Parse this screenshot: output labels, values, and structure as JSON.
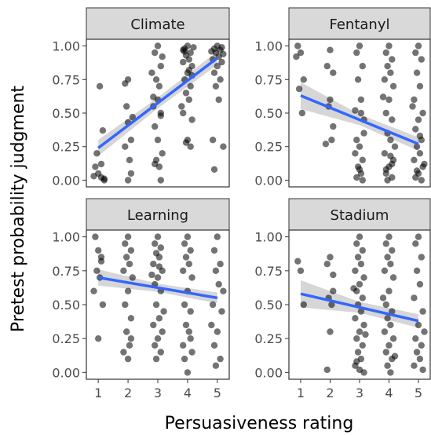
{
  "chart_data": {
    "type": "scatter",
    "xlabel": "Persuasiveness rating",
    "ylabel": "Pretest probability judgment",
    "xlim": [
      0.6,
      5.4
    ],
    "ylim": [
      -0.05,
      1.05
    ],
    "x_ticks": [
      1,
      2,
      3,
      4,
      5
    ],
    "y_ticks": [
      0.0,
      0.25,
      0.5,
      0.75,
      1.0
    ],
    "y_tick_labels": [
      "0.00",
      "0.25",
      "0.50",
      "0.75",
      "1.00"
    ],
    "colors": {
      "points": "#000000",
      "trend_line": "#3366ff",
      "confidence_band": "#999999",
      "strip_fill": "#d9d9d9",
      "panel_border": "#333333"
    },
    "panels": [
      {
        "name": "Climate",
        "trend": {
          "x": [
            1,
            5
          ],
          "y": [
            0.24,
            0.91
          ],
          "ci_halfwidth": [
            0.06,
            0.04,
            0.05
          ]
        },
        "points": [
          [
            1.0,
            0.05
          ],
          [
            1.1,
            0.02
          ],
          [
            0.9,
            0.1
          ],
          [
            1.2,
            0.0
          ],
          [
            1.05,
            0.7
          ],
          [
            1.15,
            0.37
          ],
          [
            0.95,
            0.2
          ],
          [
            1.2,
            0.01
          ],
          [
            0.85,
            0.03
          ],
          [
            1.1,
            0.12
          ],
          [
            2.0,
            0.75
          ],
          [
            1.9,
            0.25
          ],
          [
            2.1,
            0.3
          ],
          [
            2.0,
            0.43
          ],
          [
            1.95,
            0.55
          ],
          [
            2.05,
            0.15
          ],
          [
            2.1,
            0.05
          ],
          [
            1.9,
            0.72
          ],
          [
            2.15,
            0.47
          ],
          [
            2.0,
            0.0
          ],
          [
            3.0,
            1.0
          ],
          [
            2.9,
            0.95
          ],
          [
            3.1,
            0.85
          ],
          [
            2.95,
            0.75
          ],
          [
            3.05,
            0.7
          ],
          [
            2.85,
            0.62
          ],
          [
            3.1,
            0.5
          ],
          [
            2.9,
            0.4
          ],
          [
            3.0,
            0.3
          ],
          [
            2.95,
            0.15
          ],
          [
            3.05,
            0.1
          ],
          [
            3.1,
            0.0
          ],
          [
            2.85,
            0.55
          ],
          [
            3.15,
            0.92
          ],
          [
            2.8,
            0.8
          ],
          [
            3.0,
            0.6
          ],
          [
            3.15,
            0.2
          ],
          [
            2.9,
            0.12
          ],
          [
            3.1,
            0.48
          ],
          [
            4.0,
            1.0
          ],
          [
            3.9,
            0.98
          ],
          [
            4.1,
            0.95
          ],
          [
            3.95,
            0.93
          ],
          [
            4.05,
            0.9
          ],
          [
            3.85,
            0.88
          ],
          [
            4.15,
            0.85
          ],
          [
            4.0,
            0.8
          ],
          [
            3.9,
            0.75
          ],
          [
            4.1,
            0.7
          ],
          [
            3.95,
            0.65
          ],
          [
            4.05,
            0.6
          ],
          [
            3.85,
            0.5
          ],
          [
            4.15,
            0.45
          ],
          [
            4.0,
            0.3
          ],
          [
            3.95,
            0.28
          ],
          [
            4.1,
            0.25
          ],
          [
            3.8,
            0.55
          ],
          [
            4.2,
            0.99
          ],
          [
            3.9,
            0.96
          ],
          [
            4.05,
            0.82
          ],
          [
            3.85,
            0.97
          ],
          [
            4.15,
            0.78
          ],
          [
            5.0,
            1.0
          ],
          [
            4.9,
            0.98
          ],
          [
            5.1,
            0.97
          ],
          [
            4.95,
            0.95
          ],
          [
            5.05,
            0.92
          ],
          [
            4.85,
            0.9
          ],
          [
            5.15,
            0.88
          ],
          [
            5.0,
            0.85
          ],
          [
            4.9,
            0.8
          ],
          [
            5.1,
            0.75
          ],
          [
            4.95,
            0.7
          ],
          [
            5.05,
            0.6
          ],
          [
            5.2,
            0.25
          ],
          [
            4.9,
            0.08
          ],
          [
            5.15,
            0.99
          ],
          [
            4.8,
            0.96
          ],
          [
            5.2,
            0.94
          ],
          [
            4.85,
            0.3
          ]
        ]
      },
      {
        "name": "Fentanyl",
        "trend": {
          "x": [
            1,
            5
          ],
          "y": [
            0.63,
            0.27
          ],
          "ci_halfwidth": [
            0.1,
            0.04,
            0.05
          ]
        },
        "points": [
          [
            0.9,
            1.0
          ],
          [
            1.0,
            0.95
          ],
          [
            1.1,
            0.75
          ],
          [
            0.95,
            0.68
          ],
          [
            1.05,
            0.5
          ],
          [
            0.85,
            0.92
          ],
          [
            2.0,
            0.97
          ],
          [
            1.9,
            0.85
          ],
          [
            2.1,
            0.8
          ],
          [
            2.0,
            0.6
          ],
          [
            1.95,
            0.55
          ],
          [
            2.05,
            0.3
          ],
          [
            1.85,
            0.27
          ],
          [
            2.1,
            0.4
          ],
          [
            3.0,
            1.0
          ],
          [
            2.9,
            0.95
          ],
          [
            3.1,
            0.85
          ],
          [
            2.95,
            0.75
          ],
          [
            3.05,
            0.6
          ],
          [
            2.85,
            0.52
          ],
          [
            3.15,
            0.45
          ],
          [
            2.9,
            0.3
          ],
          [
            3.0,
            0.25
          ],
          [
            3.1,
            0.15
          ],
          [
            2.95,
            0.1
          ],
          [
            3.05,
            0.05
          ],
          [
            2.9,
            0.02
          ],
          [
            3.1,
            0.0
          ],
          [
            3.15,
            0.35
          ],
          [
            2.85,
            0.2
          ],
          [
            3.0,
            0.08
          ],
          [
            3.05,
            0.5
          ],
          [
            4.0,
            1.0
          ],
          [
            3.9,
            0.95
          ],
          [
            4.1,
            0.9
          ],
          [
            3.95,
            0.85
          ],
          [
            4.05,
            0.8
          ],
          [
            3.85,
            0.75
          ],
          [
            4.15,
            0.7
          ],
          [
            4.0,
            0.6
          ],
          [
            3.9,
            0.5
          ],
          [
            4.1,
            0.45
          ],
          [
            3.95,
            0.35
          ],
          [
            4.05,
            0.3
          ],
          [
            3.85,
            0.2
          ],
          [
            4.15,
            0.15
          ],
          [
            4.0,
            0.1
          ],
          [
            3.9,
            0.05
          ],
          [
            4.1,
            0.02
          ],
          [
            3.95,
            0.0
          ],
          [
            4.05,
            0.18
          ],
          [
            3.8,
            0.62
          ],
          [
            4.2,
            0.25
          ],
          [
            3.9,
            0.08
          ],
          [
            4.1,
            0.12
          ],
          [
            5.0,
            1.0
          ],
          [
            4.9,
            0.95
          ],
          [
            5.1,
            0.9
          ],
          [
            4.95,
            0.8
          ],
          [
            5.05,
            0.7
          ],
          [
            4.85,
            0.6
          ],
          [
            5.15,
            0.5
          ],
          [
            5.0,
            0.45
          ],
          [
            4.9,
            0.38
          ],
          [
            5.1,
            0.3
          ],
          [
            4.95,
            0.25
          ],
          [
            5.05,
            0.2
          ],
          [
            4.85,
            0.15
          ],
          [
            5.15,
            0.1
          ],
          [
            5.0,
            0.05
          ],
          [
            4.9,
            0.02
          ],
          [
            5.1,
            0.0
          ],
          [
            4.8,
            0.55
          ],
          [
            5.2,
            0.12
          ],
          [
            4.95,
            0.07
          ],
          [
            5.05,
            0.33
          ]
        ]
      },
      {
        "name": "Learning",
        "trend": {
          "x": [
            1,
            5
          ],
          "y": [
            0.7,
            0.55
          ],
          "ci_halfwidth": [
            0.06,
            0.03,
            0.04
          ]
        },
        "points": [
          [
            0.9,
            1.0
          ],
          [
            1.0,
            0.9
          ],
          [
            1.1,
            0.82
          ],
          [
            0.95,
            0.75
          ],
          [
            1.05,
            0.7
          ],
          [
            0.85,
            0.6
          ],
          [
            1.15,
            0.5
          ],
          [
            1.0,
            0.25
          ],
          [
            1.1,
            0.85
          ],
          [
            2.0,
            1.0
          ],
          [
            1.9,
            0.95
          ],
          [
            2.1,
            0.9
          ],
          [
            1.95,
            0.85
          ],
          [
            2.05,
            0.8
          ],
          [
            1.85,
            0.75
          ],
          [
            2.15,
            0.7
          ],
          [
            2.0,
            0.6
          ],
          [
            1.9,
            0.5
          ],
          [
            2.1,
            0.4
          ],
          [
            1.95,
            0.3
          ],
          [
            2.05,
            0.2
          ],
          [
            1.85,
            0.15
          ],
          [
            2.0,
            0.1
          ],
          [
            2.1,
            0.25
          ],
          [
            3.0,
            1.0
          ],
          [
            2.9,
            0.95
          ],
          [
            3.1,
            0.92
          ],
          [
            2.95,
            0.88
          ],
          [
            3.05,
            0.85
          ],
          [
            2.85,
            0.8
          ],
          [
            3.15,
            0.75
          ],
          [
            3.0,
            0.7
          ],
          [
            2.9,
            0.65
          ],
          [
            3.1,
            0.6
          ],
          [
            2.95,
            0.5
          ],
          [
            3.05,
            0.4
          ],
          [
            2.85,
            0.35
          ],
          [
            3.15,
            0.3
          ],
          [
            3.0,
            0.25
          ],
          [
            2.9,
            0.2
          ],
          [
            3.1,
            0.15
          ],
          [
            2.95,
            0.1
          ],
          [
            3.05,
            0.78
          ],
          [
            2.8,
            0.72
          ],
          [
            3.2,
            0.45
          ],
          [
            4.0,
            1.0
          ],
          [
            3.9,
            0.95
          ],
          [
            4.1,
            0.9
          ],
          [
            3.95,
            0.85
          ],
          [
            4.05,
            0.8
          ],
          [
            3.85,
            0.75
          ],
          [
            4.15,
            0.7
          ],
          [
            4.0,
            0.6
          ],
          [
            3.9,
            0.5
          ],
          [
            4.1,
            0.45
          ],
          [
            3.95,
            0.35
          ],
          [
            4.05,
            0.3
          ],
          [
            3.85,
            0.2
          ],
          [
            4.15,
            0.15
          ],
          [
            4.0,
            0.0
          ],
          [
            3.9,
            0.1
          ],
          [
            4.1,
            0.25
          ],
          [
            5.0,
            1.0
          ],
          [
            4.9,
            0.9
          ],
          [
            5.1,
            0.8
          ],
          [
            4.95,
            0.75
          ],
          [
            5.05,
            0.65
          ],
          [
            4.85,
            0.5
          ],
          [
            5.15,
            0.45
          ],
          [
            5.0,
            0.3
          ],
          [
            4.9,
            0.2
          ],
          [
            5.1,
            0.1
          ],
          [
            4.95,
            0.05
          ],
          [
            5.2,
            0.6
          ],
          [
            4.8,
            0.35
          ]
        ]
      },
      {
        "name": "Stadium",
        "trend": {
          "x": [
            1,
            5
          ],
          "y": [
            0.58,
            0.38
          ],
          "ci_halfwidth": [
            0.1,
            0.04,
            0.05
          ]
        },
        "points": [
          [
            0.9,
            0.82
          ],
          [
            1.0,
            0.75
          ],
          [
            1.1,
            0.5
          ],
          [
            2.0,
            0.85
          ],
          [
            1.9,
            0.8
          ],
          [
            2.1,
            0.72
          ],
          [
            1.95,
            0.55
          ],
          [
            2.05,
            0.5
          ],
          [
            2.0,
            0.3
          ],
          [
            1.9,
            0.02
          ],
          [
            2.1,
            0.6
          ],
          [
            3.0,
            1.0
          ],
          [
            2.9,
            0.95
          ],
          [
            3.1,
            0.9
          ],
          [
            2.95,
            0.85
          ],
          [
            3.05,
            0.8
          ],
          [
            2.85,
            0.75
          ],
          [
            3.15,
            0.7
          ],
          [
            3.0,
            0.65
          ],
          [
            2.9,
            0.6
          ],
          [
            3.1,
            0.55
          ],
          [
            2.95,
            0.5
          ],
          [
            3.05,
            0.45
          ],
          [
            2.85,
            0.4
          ],
          [
            3.15,
            0.35
          ],
          [
            3.0,
            0.3
          ],
          [
            2.9,
            0.25
          ],
          [
            3.1,
            0.2
          ],
          [
            2.95,
            0.15
          ],
          [
            3.05,
            0.1
          ],
          [
            2.85,
            0.05
          ],
          [
            3.15,
            0.0
          ],
          [
            3.0,
            0.02
          ],
          [
            2.8,
            0.62
          ],
          [
            3.2,
            0.28
          ],
          [
            2.9,
            0.08
          ],
          [
            4.0,
            1.0
          ],
          [
            3.9,
            0.95
          ],
          [
            4.1,
            0.9
          ],
          [
            3.95,
            0.85
          ],
          [
            4.05,
            0.8
          ],
          [
            3.85,
            0.75
          ],
          [
            4.15,
            0.7
          ],
          [
            4.0,
            0.6
          ],
          [
            3.9,
            0.5
          ],
          [
            4.1,
            0.45
          ],
          [
            3.95,
            0.4
          ],
          [
            4.05,
            0.35
          ],
          [
            3.85,
            0.3
          ],
          [
            4.15,
            0.25
          ],
          [
            4.0,
            0.2
          ],
          [
            3.9,
            0.15
          ],
          [
            4.1,
            0.1
          ],
          [
            3.95,
            0.05
          ],
          [
            4.05,
            0.0
          ],
          [
            3.8,
            0.55
          ],
          [
            4.2,
            0.12
          ],
          [
            5.0,
            1.0
          ],
          [
            4.9,
            0.95
          ],
          [
            5.1,
            0.85
          ],
          [
            4.95,
            0.75
          ],
          [
            5.05,
            0.65
          ],
          [
            4.85,
            0.55
          ],
          [
            5.15,
            0.45
          ],
          [
            5.0,
            0.35
          ],
          [
            4.9,
            0.25
          ],
          [
            5.1,
            0.2
          ],
          [
            4.95,
            0.15
          ],
          [
            5.05,
            0.1
          ],
          [
            4.85,
            0.05
          ],
          [
            5.15,
            0.02
          ],
          [
            5.2,
            0.3
          ]
        ]
      }
    ]
  }
}
